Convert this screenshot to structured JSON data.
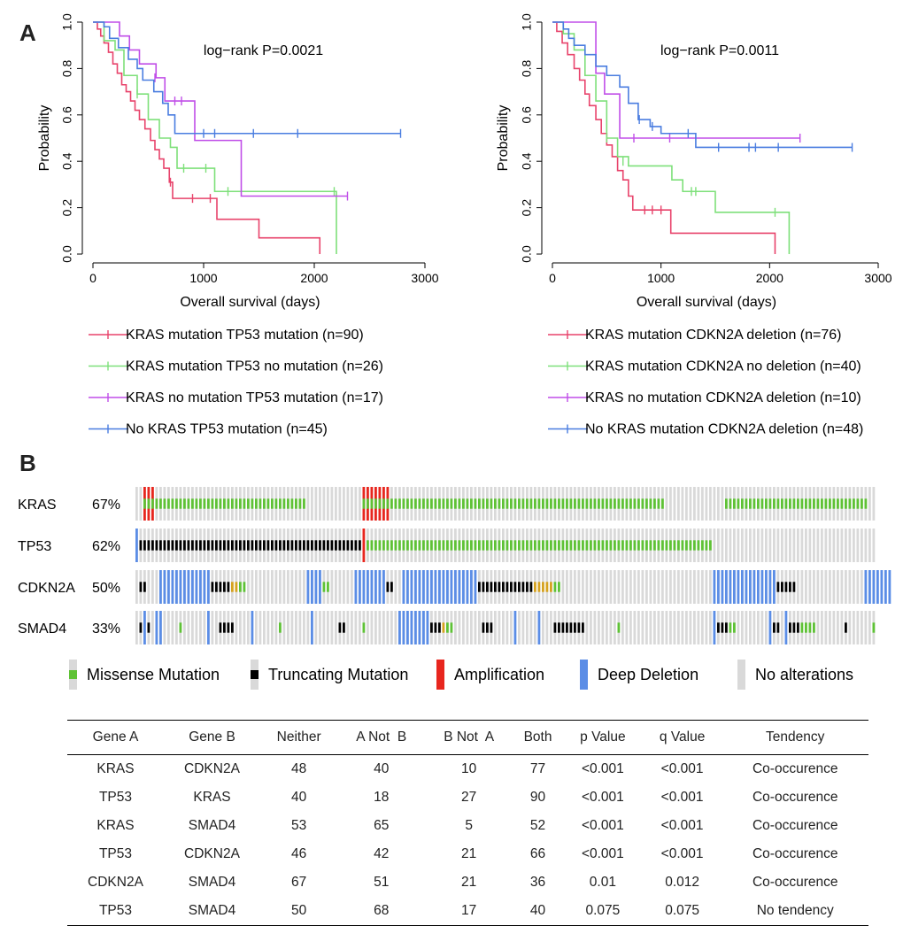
{
  "panel_a_label": "A",
  "panel_b_label": "B",
  "chart_data": [
    {
      "type": "line",
      "subtype": "kaplan-meier",
      "annotation": "log−rank P=0.0021",
      "xlabel": "Overall survival (days)",
      "ylabel": "Probability",
      "xlim": [
        0,
        3000
      ],
      "ylim": [
        0,
        1
      ],
      "xticks": [
        "0",
        "1000",
        "2000",
        "3000"
      ],
      "yticks": [
        "0.0",
        "0.2",
        "0.4",
        "0.6",
        "0.8",
        "1.0"
      ],
      "series": [
        {
          "name": "KRAS mutation TP53 mutation (n=90)",
          "color": "#e8436b",
          "steps": [
            [
              0,
              1.0
            ],
            [
              40,
              0.97
            ],
            [
              70,
              0.94
            ],
            [
              100,
              0.91
            ],
            [
              140,
              0.87
            ],
            [
              180,
              0.82
            ],
            [
              220,
              0.78
            ],
            [
              260,
              0.73
            ],
            [
              300,
              0.7
            ],
            [
              340,
              0.66
            ],
            [
              380,
              0.62
            ],
            [
              420,
              0.58
            ],
            [
              470,
              0.54
            ],
            [
              520,
              0.49
            ],
            [
              560,
              0.45
            ],
            [
              600,
              0.41
            ],
            [
              640,
              0.37
            ],
            [
              690,
              0.31
            ],
            [
              720,
              0.24
            ],
            [
              890,
              0.24
            ],
            [
              1120,
              0.15
            ],
            [
              1240,
              0.15
            ],
            [
              1500,
              0.07
            ],
            [
              2050,
              0.07
            ],
            [
              2050,
              0.0
            ]
          ],
          "censors": [
            [
              700,
              0.31
            ],
            [
              900,
              0.24
            ],
            [
              1060,
              0.24
            ]
          ]
        },
        {
          "name": "KRAS mutation TP53 no mutation (n=26)",
          "color": "#7ee07a",
          "steps": [
            [
              0,
              1.0
            ],
            [
              100,
              0.92
            ],
            [
              200,
              0.88
            ],
            [
              280,
              0.77
            ],
            [
              400,
              0.69
            ],
            [
              500,
              0.58
            ],
            [
              600,
              0.5
            ],
            [
              700,
              0.46
            ],
            [
              760,
              0.37
            ],
            [
              1000,
              0.37
            ],
            [
              1100,
              0.27
            ],
            [
              2200,
              0.27
            ],
            [
              2200,
              0.0
            ]
          ],
          "censors": [
            [
              400,
              0.69
            ],
            [
              820,
              0.37
            ],
            [
              1020,
              0.37
            ],
            [
              1220,
              0.27
            ],
            [
              2180,
              0.27
            ]
          ]
        },
        {
          "name": "KRAS no mutation TP53 mutation (n=17)",
          "color": "#c04ee8",
          "steps": [
            [
              0,
              1.0
            ],
            [
              240,
              0.94
            ],
            [
              330,
              0.88
            ],
            [
              420,
              0.82
            ],
            [
              570,
              0.76
            ],
            [
              650,
              0.66
            ],
            [
              920,
              0.49
            ],
            [
              1320,
              0.49
            ],
            [
              1340,
              0.25
            ],
            [
              2300,
              0.25
            ]
          ],
          "censors": [
            [
              560,
              0.76
            ],
            [
              740,
              0.66
            ],
            [
              800,
              0.66
            ],
            [
              2300,
              0.25
            ]
          ]
        },
        {
          "name": "No KRAS TP53 mutation (n=45)",
          "color": "#4a7de0",
          "steps": [
            [
              0,
              1.0
            ],
            [
              100,
              0.98
            ],
            [
              150,
              0.93
            ],
            [
              230,
              0.89
            ],
            [
              320,
              0.84
            ],
            [
              400,
              0.8
            ],
            [
              450,
              0.75
            ],
            [
              550,
              0.7
            ],
            [
              630,
              0.65
            ],
            [
              680,
              0.6
            ],
            [
              740,
              0.52
            ],
            [
              2780,
              0.52
            ]
          ],
          "censors": [
            [
              1000,
              0.52
            ],
            [
              1100,
              0.52
            ],
            [
              1450,
              0.52
            ],
            [
              1850,
              0.52
            ],
            [
              2780,
              0.52
            ]
          ]
        }
      ]
    },
    {
      "type": "line",
      "subtype": "kaplan-meier",
      "annotation": "log−rank P=0.0011",
      "xlabel": "Overall survival (days)",
      "ylabel": "Probability",
      "xlim": [
        0,
        3000
      ],
      "ylim": [
        0,
        1
      ],
      "xticks": [
        "0",
        "1000",
        "2000",
        "3000"
      ],
      "yticks": [
        "0.0",
        "0.2",
        "0.4",
        "0.6",
        "0.8",
        "1.0"
      ],
      "series": [
        {
          "name": "KRAS mutation CDKN2A deletion (n=76)",
          "color": "#e8436b",
          "steps": [
            [
              0,
              1.0
            ],
            [
              40,
              0.96
            ],
            [
              90,
              0.91
            ],
            [
              140,
              0.86
            ],
            [
              200,
              0.8
            ],
            [
              250,
              0.75
            ],
            [
              300,
              0.69
            ],
            [
              340,
              0.64
            ],
            [
              400,
              0.58
            ],
            [
              450,
              0.52
            ],
            [
              500,
              0.47
            ],
            [
              550,
              0.42
            ],
            [
              600,
              0.36
            ],
            [
              650,
              0.32
            ],
            [
              700,
              0.25
            ],
            [
              740,
              0.19
            ],
            [
              1080,
              0.19
            ],
            [
              1090,
              0.09
            ],
            [
              2050,
              0.09
            ],
            [
              2050,
              0.0
            ]
          ],
          "censors": [
            [
              850,
              0.19
            ],
            [
              920,
              0.19
            ],
            [
              1000,
              0.19
            ]
          ]
        },
        {
          "name": "KRAS mutation CDKN2A no deletion (n=40)",
          "color": "#7ee07a",
          "steps": [
            [
              0,
              1.0
            ],
            [
              100,
              0.95
            ],
            [
              200,
              0.88
            ],
            [
              300,
              0.77
            ],
            [
              400,
              0.66
            ],
            [
              500,
              0.5
            ],
            [
              600,
              0.42
            ],
            [
              700,
              0.38
            ],
            [
              1000,
              0.38
            ],
            [
              1100,
              0.32
            ],
            [
              1200,
              0.27
            ],
            [
              1500,
              0.18
            ],
            [
              2180,
              0.18
            ],
            [
              2180,
              0.0
            ]
          ],
          "censors": [
            [
              500,
              0.5
            ],
            [
              650,
              0.4
            ],
            [
              1280,
              0.27
            ],
            [
              1320,
              0.27
            ],
            [
              2050,
              0.18
            ]
          ]
        },
        {
          "name": "KRAS no mutation CDKN2A deletion (n=10)",
          "color": "#c04ee8",
          "steps": [
            [
              0,
              1.0
            ],
            [
              400,
              0.78
            ],
            [
              480,
              0.69
            ],
            [
              620,
              0.5
            ],
            [
              2280,
              0.5
            ]
          ],
          "censors": [
            [
              750,
              0.5
            ],
            [
              1080,
              0.5
            ],
            [
              2280,
              0.5
            ]
          ]
        },
        {
          "name": "No KRAS mutation CDKN2A deletion (n=48)",
          "color": "#4a7de0",
          "steps": [
            [
              0,
              1.0
            ],
            [
              100,
              0.97
            ],
            [
              150,
              0.93
            ],
            [
              200,
              0.9
            ],
            [
              300,
              0.86
            ],
            [
              400,
              0.81
            ],
            [
              500,
              0.77
            ],
            [
              620,
              0.72
            ],
            [
              700,
              0.65
            ],
            [
              790,
              0.58
            ],
            [
              900,
              0.55
            ],
            [
              1000,
              0.52
            ],
            [
              1320,
              0.46
            ],
            [
              2760,
              0.46
            ]
          ],
          "censors": [
            [
              800,
              0.58
            ],
            [
              920,
              0.55
            ],
            [
              1250,
              0.52
            ],
            [
              1530,
              0.46
            ],
            [
              1810,
              0.46
            ],
            [
              1870,
              0.46
            ],
            [
              2080,
              0.46
            ],
            [
              2760,
              0.46
            ]
          ]
        }
      ]
    },
    {
      "type": "heatmap",
      "subtype": "oncoprint",
      "columns": 146,
      "genes": [
        {
          "name": "KRAS",
          "pct": "67%",
          "runs": [
            [
              "amp",
              2,
              4
            ],
            [
              "miss",
              5,
              42
            ],
            [
              "amp",
              57,
              63
            ],
            [
              "miss",
              64,
              132
            ],
            [
              "miss",
              148,
              183
            ]
          ]
        },
        {
          "name": "TP53",
          "pct": "62%",
          "runs": [
            [
              "del",
              0,
              0
            ],
            [
              "trunc",
              1,
              56
            ],
            [
              "amp",
              57,
              57
            ],
            [
              "miss",
              58,
              144
            ]
          ]
        },
        {
          "name": "CDKN2A",
          "pct": "50%",
          "runs": [
            [
              "trunc",
              1,
              2
            ],
            [
              "del",
              6,
              18
            ],
            [
              "trunc",
              19,
              23
            ],
            [
              "orange",
              24,
              25
            ],
            [
              "miss",
              26,
              27
            ],
            [
              "del",
              43,
              46
            ],
            [
              "miss",
              47,
              48
            ],
            [
              "del",
              55,
              62
            ],
            [
              "trunc",
              63,
              64
            ],
            [
              "del",
              67,
              85
            ],
            [
              "trunc",
              86,
              99
            ],
            [
              "orange",
              100,
              104
            ],
            [
              "miss",
              105,
              106
            ],
            [
              "del",
              145,
              160
            ],
            [
              "trunc",
              161,
              165
            ],
            [
              "del",
              183,
              189
            ]
          ]
        },
        {
          "name": "SMAD4",
          "pct": "33%",
          "runs": [
            [
              "trunc",
              1,
              1
            ],
            [
              "del",
              2,
              2
            ],
            [
              "trunc",
              3,
              3
            ],
            [
              "del",
              5,
              6
            ],
            [
              "miss",
              11,
              11
            ],
            [
              "del",
              18,
              18
            ],
            [
              "trunc",
              21,
              24
            ],
            [
              "del",
              29,
              29
            ],
            [
              "miss",
              36,
              36
            ],
            [
              "del",
              44,
              44
            ],
            [
              "trunc",
              51,
              52
            ],
            [
              "miss",
              57,
              57
            ],
            [
              "del",
              66,
              73
            ],
            [
              "trunc",
              74,
              76
            ],
            [
              "orange",
              77,
              77
            ],
            [
              "miss",
              78,
              79
            ],
            [
              "trunc",
              87,
              89
            ],
            [
              "del",
              95,
              95
            ],
            [
              "del",
              101,
              101
            ],
            [
              "trunc",
              105,
              112
            ],
            [
              "miss",
              121,
              121
            ],
            [
              "del",
              145,
              145
            ],
            [
              "trunc",
              146,
              148
            ],
            [
              "miss",
              149,
              150
            ],
            [
              "del",
              159,
              159
            ],
            [
              "trunc",
              160,
              161
            ],
            [
              "del",
              163,
              163
            ],
            [
              "trunc",
              164,
              166
            ],
            [
              "miss",
              167,
              170
            ],
            [
              "trunc",
              178,
              178
            ],
            [
              "miss",
              185,
              185
            ]
          ]
        }
      ],
      "legend": [
        {
          "key": "miss",
          "label": "Missense Mutation",
          "color": "#5ec235"
        },
        {
          "key": "trunc",
          "label": "Truncating Mutation",
          "color": "#000000"
        },
        {
          "key": "amp",
          "label": "Amplification",
          "color": "#e8261e"
        },
        {
          "key": "del",
          "label": "Deep Deletion",
          "color": "#5b8de6"
        },
        {
          "key": "none",
          "label": "No alterations",
          "color": "#d9d9d9"
        }
      ]
    },
    {
      "type": "table",
      "columns": [
        "Gene A",
        "Gene B",
        "Neither",
        "A Not  B",
        "B Not  A",
        "Both",
        "p Value",
        "q Value",
        "Tendency"
      ],
      "rows": [
        [
          "KRAS",
          "CDKN2A",
          "48",
          "40",
          "10",
          "77",
          "<0.001",
          "<0.001",
          "Co-occurence"
        ],
        [
          "TP53",
          "KRAS",
          "40",
          "18",
          "27",
          "90",
          "<0.001",
          "<0.001",
          "Co-occurence"
        ],
        [
          "KRAS",
          "SMAD4",
          "53",
          "65",
          "5",
          "52",
          "<0.001",
          "<0.001",
          "Co-occurence"
        ],
        [
          "TP53",
          "CDKN2A",
          "46",
          "42",
          "21",
          "66",
          "<0.001",
          "<0.001",
          "Co-occurence"
        ],
        [
          "CDKN2A",
          "SMAD4",
          "67",
          "51",
          "21",
          "36",
          "0.01",
          "0.012",
          "Co-occurence"
        ],
        [
          "TP53",
          "SMAD4",
          "50",
          "68",
          "17",
          "40",
          "0.075",
          "0.075",
          "No tendency"
        ]
      ]
    }
  ]
}
